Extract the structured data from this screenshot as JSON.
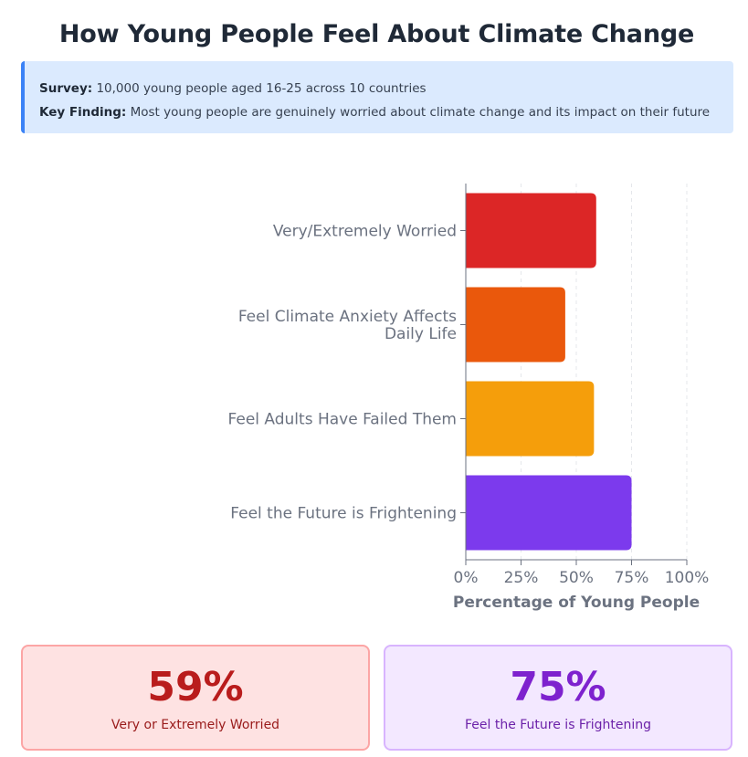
{
  "page": {
    "title": "How Young People Feel About Climate Change"
  },
  "info": {
    "survey_label": "Survey:",
    "survey_text": "10,000 young people aged 16-25 across 10 countries",
    "finding_label": "Key Finding:",
    "finding_text": "Most young people are genuinely worried about climate change and its impact on their future"
  },
  "chart_data": {
    "type": "bar",
    "orientation": "horizontal",
    "categories": [
      "Very/Extremely Worried",
      "Feel Climate Anxiety Affects Daily Life",
      "Feel Adults Have Failed Them",
      "Feel the Future is Frightening"
    ],
    "values": [
      59,
      45,
      58,
      75
    ],
    "colors": [
      "#dc2626",
      "#ea580c",
      "#f59e0b",
      "#7c3aed"
    ],
    "xlabel": "Percentage of Young People",
    "ylabel": "",
    "xlim": [
      0,
      100
    ],
    "xticks": [
      "0%",
      "25%",
      "50%",
      "75%",
      "100%"
    ],
    "grid": "vertical dashed",
    "legend": "none"
  },
  "stats": [
    {
      "value": "59%",
      "label": "Very or Extremely Worried",
      "color": "#b91c1c"
    },
    {
      "value": "75%",
      "label": "Feel the Future is Frightening",
      "color": "#7e22ce"
    }
  ]
}
